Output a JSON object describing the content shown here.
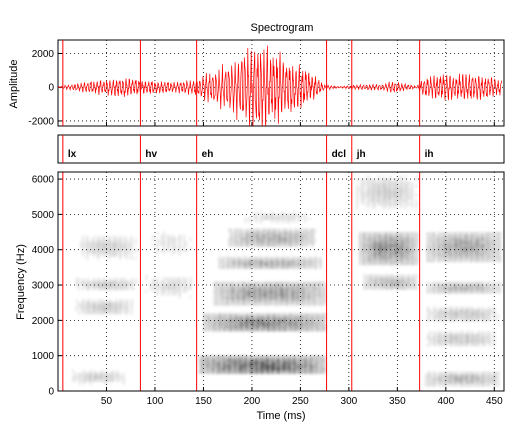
{
  "chart_data": [
    {
      "type": "line",
      "panel": "waveform",
      "title": "Spectrogram",
      "ylabel": "Amplitude",
      "xlim": [
        0,
        460
      ],
      "ylim": [
        -2300,
        2800
      ],
      "yticks": [
        -2000,
        0,
        2000
      ],
      "grid": true,
      "line_color": "#ff0000",
      "envelope": [
        {
          "t": 0,
          "a": 30
        },
        {
          "t": 10,
          "a": 120
        },
        {
          "t": 30,
          "a": 320
        },
        {
          "t": 50,
          "a": 450
        },
        {
          "t": 70,
          "a": 550
        },
        {
          "t": 85,
          "a": 420
        },
        {
          "t": 100,
          "a": 380
        },
        {
          "t": 120,
          "a": 330
        },
        {
          "t": 140,
          "a": 420
        },
        {
          "t": 160,
          "a": 900
        },
        {
          "t": 180,
          "a": 1500
        },
        {
          "t": 195,
          "a": 2150
        },
        {
          "t": 205,
          "a": 2450
        },
        {
          "t": 215,
          "a": 2300
        },
        {
          "t": 230,
          "a": 1800
        },
        {
          "t": 250,
          "a": 1200
        },
        {
          "t": 265,
          "a": 650
        },
        {
          "t": 275,
          "a": 150
        },
        {
          "t": 290,
          "a": 40
        },
        {
          "t": 300,
          "a": 100
        },
        {
          "t": 315,
          "a": 150
        },
        {
          "t": 335,
          "a": 180
        },
        {
          "t": 345,
          "a": 380
        },
        {
          "t": 355,
          "a": 240
        },
        {
          "t": 370,
          "a": 40
        },
        {
          "t": 376,
          "a": 500
        },
        {
          "t": 395,
          "a": 700
        },
        {
          "t": 420,
          "a": 760
        },
        {
          "t": 440,
          "a": 700
        },
        {
          "t": 455,
          "a": 450
        }
      ]
    },
    {
      "type": "table",
      "panel": "segments",
      "xlim": [
        0,
        460
      ],
      "boundary_color": "#ff0000",
      "segments": [
        {
          "label": "lx",
          "start": 5,
          "end": 85
        },
        {
          "label": "hv",
          "start": 85,
          "end": 143
        },
        {
          "label": "eh",
          "start": 143,
          "end": 277
        },
        {
          "label": "dcl",
          "start": 277,
          "end": 303
        },
        {
          "label": "jh",
          "start": 303,
          "end": 373
        },
        {
          "label": "ih",
          "start": 373,
          "end": 460
        }
      ]
    },
    {
      "type": "heatmap",
      "panel": "spectrogram",
      "xlabel": "Time (ms)",
      "ylabel": "Frequency (Hz)",
      "xlim": [
        0,
        460
      ],
      "ylim": [
        0,
        6200
      ],
      "xticks": [
        50,
        100,
        150,
        200,
        250,
        300,
        350,
        400,
        450
      ],
      "yticks": [
        0,
        1000,
        2000,
        3000,
        4000,
        5000,
        6000
      ],
      "grid": true,
      "colormap": "grayscale",
      "energy_regions": [
        {
          "t0": 12,
          "t1": 68,
          "f0": 250,
          "f1": 600,
          "level": 0.25
        },
        {
          "t0": 18,
          "t1": 75,
          "f0": 2200,
          "f1": 2600,
          "level": 0.3
        },
        {
          "t0": 18,
          "t1": 80,
          "f0": 2900,
          "f1": 3200,
          "level": 0.3
        },
        {
          "t0": 20,
          "t1": 80,
          "f0": 3800,
          "f1": 4400,
          "level": 0.25
        },
        {
          "t0": 90,
          "t1": 140,
          "f0": 2700,
          "f1": 3300,
          "level": 0.2
        },
        {
          "t0": 90,
          "t1": 140,
          "f0": 3800,
          "f1": 4600,
          "level": 0.15
        },
        {
          "t0": 145,
          "t1": 275,
          "f0": 500,
          "f1": 1000,
          "level": 0.85
        },
        {
          "t0": 150,
          "t1": 275,
          "f0": 1700,
          "f1": 2200,
          "level": 0.65
        },
        {
          "t0": 160,
          "t1": 275,
          "f0": 2500,
          "f1": 3100,
          "level": 0.55
        },
        {
          "t0": 165,
          "t1": 270,
          "f0": 3500,
          "f1": 3800,
          "level": 0.45
        },
        {
          "t0": 175,
          "t1": 265,
          "f0": 4100,
          "f1": 4600,
          "level": 0.45
        },
        {
          "t0": 190,
          "t1": 260,
          "f0": 4800,
          "f1": 5100,
          "level": 0.2
        },
        {
          "t0": 310,
          "t1": 370,
          "f0": 3600,
          "f1": 4500,
          "level": 0.6
        },
        {
          "t0": 315,
          "t1": 370,
          "f0": 2900,
          "f1": 3300,
          "level": 0.4
        },
        {
          "t0": 305,
          "t1": 370,
          "f0": 5200,
          "f1": 6100,
          "level": 0.25
        },
        {
          "t0": 378,
          "t1": 455,
          "f0": 200,
          "f1": 550,
          "level": 0.4
        },
        {
          "t0": 378,
          "t1": 450,
          "f0": 1300,
          "f1": 1700,
          "level": 0.3
        },
        {
          "t0": 378,
          "t1": 455,
          "f0": 2000,
          "f1": 2400,
          "level": 0.3
        },
        {
          "t0": 380,
          "t1": 455,
          "f0": 2800,
          "f1": 3100,
          "level": 0.4
        },
        {
          "t0": 380,
          "t1": 455,
          "f0": 3700,
          "f1": 4500,
          "level": 0.5
        }
      ]
    }
  ]
}
